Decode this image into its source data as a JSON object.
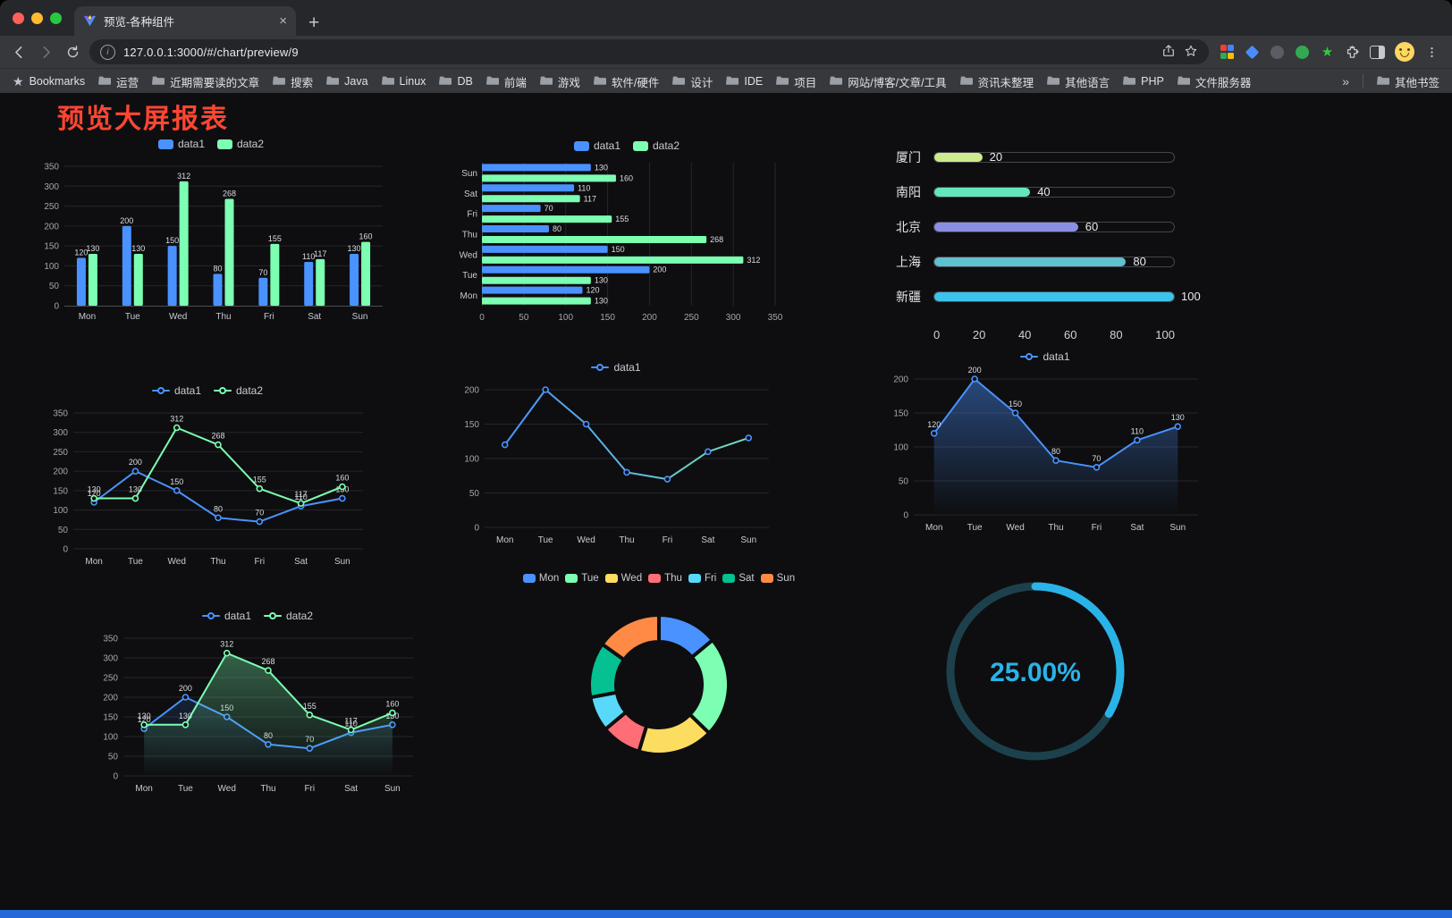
{
  "browser": {
    "traffic_lights": [
      "#ff5f57",
      "#febc2e",
      "#28c840"
    ],
    "tab_title": "预览-各种组件",
    "tab_close": "×",
    "new_tab": "+",
    "url": "127.0.0.1:3000/#/chart/preview/9",
    "bookmarks_bar": {
      "first_item": "Bookmarks",
      "folders": [
        "运营",
        "近期需要读的文章",
        "搜索",
        "Java",
        "Linux",
        "DB",
        "前端",
        "游戏",
        "软件/硬件",
        "设计",
        "IDE",
        "项目",
        "网站/博客/文章/工具",
        "资讯未整理",
        "其他语言",
        "PHP",
        "文件服务器"
      ],
      "overflow": "»",
      "other": "其他书签"
    }
  },
  "page": {
    "title": "预览大屏报表",
    "title_color": "#ff4632",
    "background": "#0e0e10",
    "footer_color": "#2468d9"
  },
  "theme": {
    "grid": "#26262b",
    "axis_line": "#4c4d52",
    "tick_color": "#a2a6ad",
    "label_color": "#dcdee2",
    "category_color": "#c8cbd0"
  },
  "charts": [
    {
      "id": "c1",
      "type": "bar",
      "ymax": 350,
      "ystep": 50,
      "categories": [
        "Mon",
        "Tue",
        "Wed",
        "Thu",
        "Fri",
        "Sat",
        "Sun"
      ],
      "series": [
        {
          "name": "data1",
          "color": "#4992ff",
          "values": [
            120,
            200,
            150,
            80,
            70,
            110,
            130
          ]
        },
        {
          "name": "data2",
          "color": "#7cffb2",
          "values": [
            130,
            130,
            312,
            268,
            155,
            117,
            160
          ]
        }
      ]
    },
    {
      "id": "c2",
      "type": "hbar",
      "xmax": 350,
      "xstep": 50,
      "categories": [
        "Mon",
        "Tue",
        "Wed",
        "Thu",
        "Fri",
        "Sat",
        "Sun"
      ],
      "series": [
        {
          "name": "data1",
          "color": "#4992ff",
          "values": [
            120,
            200,
            150,
            80,
            70,
            110,
            130
          ]
        },
        {
          "name": "data2",
          "color": "#7cffb2",
          "values": [
            130,
            130,
            312,
            268,
            155,
            117,
            160
          ]
        }
      ]
    },
    {
      "id": "c3",
      "type": "progress",
      "max": 100,
      "axis": [
        0,
        20,
        40,
        60,
        80,
        100
      ],
      "rows": [
        {
          "label": "厦门",
          "value": 20,
          "color": "#cdeb8f"
        },
        {
          "label": "南阳",
          "value": 40,
          "color": "#63e6be"
        },
        {
          "label": "北京",
          "value": 60,
          "color": "#8b8fe3"
        },
        {
          "label": "上海",
          "value": 80,
          "color": "#5fc0cf"
        },
        {
          "label": "新疆",
          "value": 100,
          "color": "#3dc2ec"
        }
      ]
    },
    {
      "id": "c4",
      "type": "line",
      "ymax": 350,
      "ystep": 50,
      "show_labels": true,
      "categories": [
        "Mon",
        "Tue",
        "Wed",
        "Thu",
        "Fri",
        "Sat",
        "Sun"
      ],
      "series": [
        {
          "name": "data1",
          "color": "#4992ff",
          "values": [
            120,
            200,
            150,
            80,
            70,
            110,
            130
          ]
        },
        {
          "name": "data2",
          "color": "#7cffb2",
          "values": [
            130,
            130,
            312,
            268,
            155,
            117,
            160
          ]
        }
      ]
    },
    {
      "id": "c5",
      "type": "line",
      "ymax": 200,
      "ystep": 50,
      "show_labels": false,
      "categories": [
        "Mon",
        "Tue",
        "Wed",
        "Thu",
        "Fri",
        "Sat",
        "Sun"
      ],
      "series": [
        {
          "name": "data1",
          "color": "#4992ff",
          "gradient": [
            "#4992ff",
            "#6fe0b8"
          ],
          "values": [
            120,
            200,
            150,
            80,
            70,
            110,
            130
          ]
        }
      ]
    },
    {
      "id": "c6",
      "type": "line",
      "ymax": 200,
      "ystep": 50,
      "show_labels": true,
      "categories": [
        "Mon",
        "Tue",
        "Wed",
        "Thu",
        "Fri",
        "Sat",
        "Sun"
      ],
      "series": [
        {
          "name": "data1",
          "color": "#4992ff",
          "area": 0.45,
          "values": [
            120,
            200,
            150,
            80,
            70,
            110,
            130
          ]
        }
      ]
    },
    {
      "id": "c7",
      "type": "line",
      "ymax": 350,
      "ystep": 50,
      "show_labels": true,
      "categories": [
        "Mon",
        "Tue",
        "Wed",
        "Thu",
        "Fri",
        "Sat",
        "Sun"
      ],
      "series": [
        {
          "name": "data1",
          "color": "#4992ff",
          "area": 0.15,
          "values": [
            120,
            200,
            150,
            80,
            70,
            110,
            130
          ]
        },
        {
          "name": "data2",
          "color": "#7cffb2",
          "area": 0.35,
          "values": [
            130,
            130,
            312,
            268,
            155,
            117,
            160
          ]
        }
      ]
    },
    {
      "id": "c8",
      "type": "donut",
      "categories": [
        "Mon",
        "Tue",
        "Wed",
        "Thu",
        "Fri",
        "Sat",
        "Sun"
      ],
      "values": [
        120,
        200,
        150,
        80,
        70,
        110,
        130
      ],
      "colors": [
        "#4992ff",
        "#7cffb2",
        "#fddd60",
        "#ff6e76",
        "#58d9f9",
        "#05c091",
        "#ff8a45"
      ]
    },
    {
      "id": "c9",
      "type": "gauge",
      "percent": 25,
      "label": "25.00%",
      "color": "#2ab3e8",
      "track": "#1d414c"
    }
  ]
}
